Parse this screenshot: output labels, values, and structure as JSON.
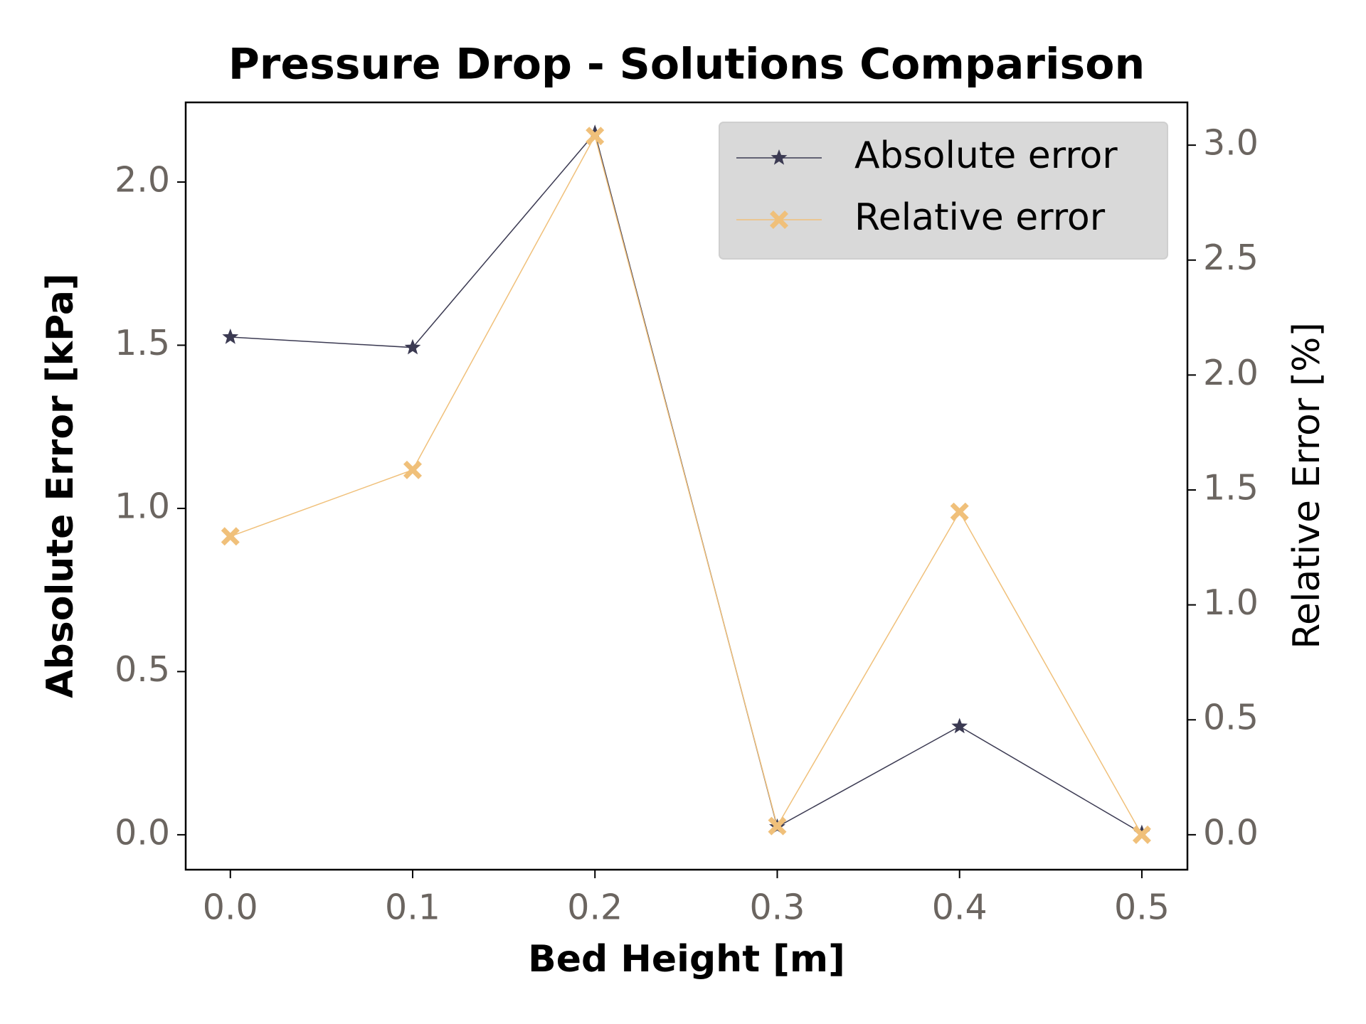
{
  "chart_data": {
    "type": "line",
    "title": "Pressure Drop - Solutions Comparison",
    "x_label": "Bed Height [m]",
    "y_label": "Absolute Error [kPa]",
    "y2_label": "Relative Error [%]",
    "x": [
      0.0,
      0.1,
      0.2,
      0.3,
      0.4,
      0.5
    ],
    "series": [
      {
        "name": "Absolute error",
        "color": "#3b3a52",
        "marker": "star",
        "values": [
          1.525,
          1.493,
          2.15,
          0.024,
          0.332,
          0.005
        ]
      },
      {
        "name": "Relative error",
        "color": "#f0c07a",
        "marker": "x",
        "axis": "y2",
        "values": [
          1.298,
          1.587,
          3.04,
          0.038,
          1.405,
          0.0
        ]
      }
    ],
    "xlim": [
      -0.0245,
      0.525
    ],
    "xticks": [
      {
        "value": 0,
        "label": "0.0"
      },
      0.1,
      0.2,
      0.3,
      0.4,
      0.5
    ],
    "ylim": [
      -0.107,
      2.244
    ],
    "yticks": [
      {
        "value": 0,
        "label": "0.0"
      },
      0.5,
      {
        "value": 1,
        "label": "1.0"
      },
      1.5,
      {
        "value": 2,
        "label": "2.0"
      }
    ],
    "y2lim": [
      -0.152,
      3.186
    ],
    "y2ticks": [
      {
        "value": 0,
        "label": "0.0"
      },
      0.5,
      {
        "value": 1,
        "label": "1.0"
      },
      1.5,
      {
        "value": 2,
        "label": "2.0"
      },
      2.5,
      {
        "value": 3,
        "label": "3.0"
      }
    ],
    "legend": "upper right"
  }
}
